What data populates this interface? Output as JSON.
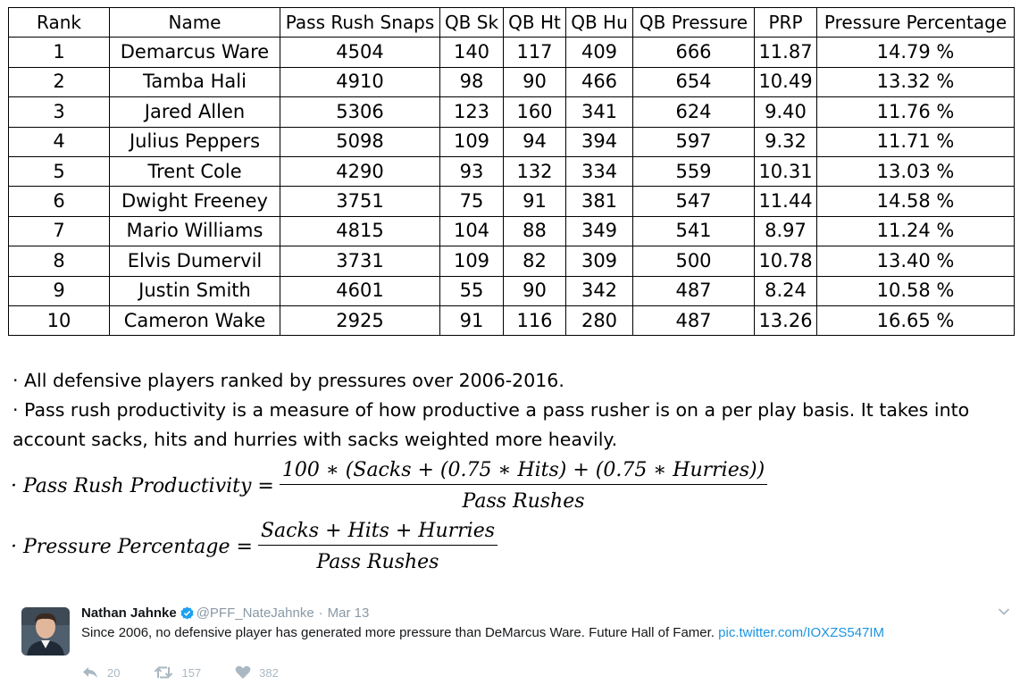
{
  "table": {
    "headers": [
      "Rank",
      "Name",
      "Pass Rush Snaps",
      "QB Sk",
      "QB Ht",
      "QB Hu",
      "QB Pressure",
      "PRP",
      "Pressure Percentage"
    ],
    "rows": [
      [
        "1",
        "Demarcus Ware",
        "4504",
        "140",
        "117",
        "409",
        "666",
        "11.87",
        "14.79 %"
      ],
      [
        "2",
        "Tamba Hali",
        "4910",
        "98",
        "90",
        "466",
        "654",
        "10.49",
        "13.32 %"
      ],
      [
        "3",
        "Jared Allen",
        "5306",
        "123",
        "160",
        "341",
        "624",
        "9.40",
        "11.76 %"
      ],
      [
        "4",
        "Julius Peppers",
        "5098",
        "109",
        "94",
        "394",
        "597",
        "9.32",
        "11.71 %"
      ],
      [
        "5",
        "Trent Cole",
        "4290",
        "93",
        "132",
        "334",
        "559",
        "10.31",
        "13.03 %"
      ],
      [
        "6",
        "Dwight Freeney",
        "3751",
        "75",
        "91",
        "381",
        "547",
        "11.44",
        "14.58 %"
      ],
      [
        "7",
        "Mario Williams",
        "4815",
        "104",
        "88",
        "349",
        "541",
        "8.97",
        "11.24 %"
      ],
      [
        "8",
        "Elvis Dumervil",
        "3731",
        "109",
        "82",
        "309",
        "500",
        "10.78",
        "13.40 %"
      ],
      [
        "9",
        "Justin Smith",
        "4601",
        "55",
        "90",
        "342",
        "487",
        "8.24",
        "10.58 %"
      ],
      [
        "10",
        "Cameron Wake",
        "2925",
        "91",
        "116",
        "280",
        "487",
        "13.26",
        "16.65 %"
      ]
    ]
  },
  "notes": {
    "line1": "· All defensive players ranked by pressures over 2006-2016.",
    "line2": "· Pass rush productivity is a measure of how productive a pass rusher is on a per play basis. It takes into account sacks, hits and hurries with sacks weighted more heavily."
  },
  "formulas": {
    "prp": {
      "lhs": "· Pass Rush Productivity =",
      "numerator": "100 ∗ (Sacks + (0.75 ∗ Hits) + (0.75 ∗ Hurries))",
      "denominator": "Pass Rushes"
    },
    "pressure": {
      "lhs": "· Pressure Percentage =",
      "numerator": "Sacks + Hits + Hurries",
      "denominator": "Pass Rushes"
    }
  },
  "tweet": {
    "author": "Nathan Jahnke",
    "handle": "@PFF_NateJahnke",
    "separator": "·",
    "date": "Mar 13",
    "text": "Since 2006, no defensive player has generated more pressure than DeMarcus Ware. Future Hall of Famer.",
    "link": "pic.twitter.com/IOXZS547IM",
    "reply_count": "20",
    "retweet_count": "157",
    "like_count": "382",
    "icons": [
      "verified-badge-icon",
      "chevron-down-icon",
      "reply-icon",
      "retweet-icon",
      "heart-icon"
    ],
    "colors": {
      "link": "#1b95e0",
      "verified": "#1da1f2",
      "muted": "#8899a6"
    }
  }
}
